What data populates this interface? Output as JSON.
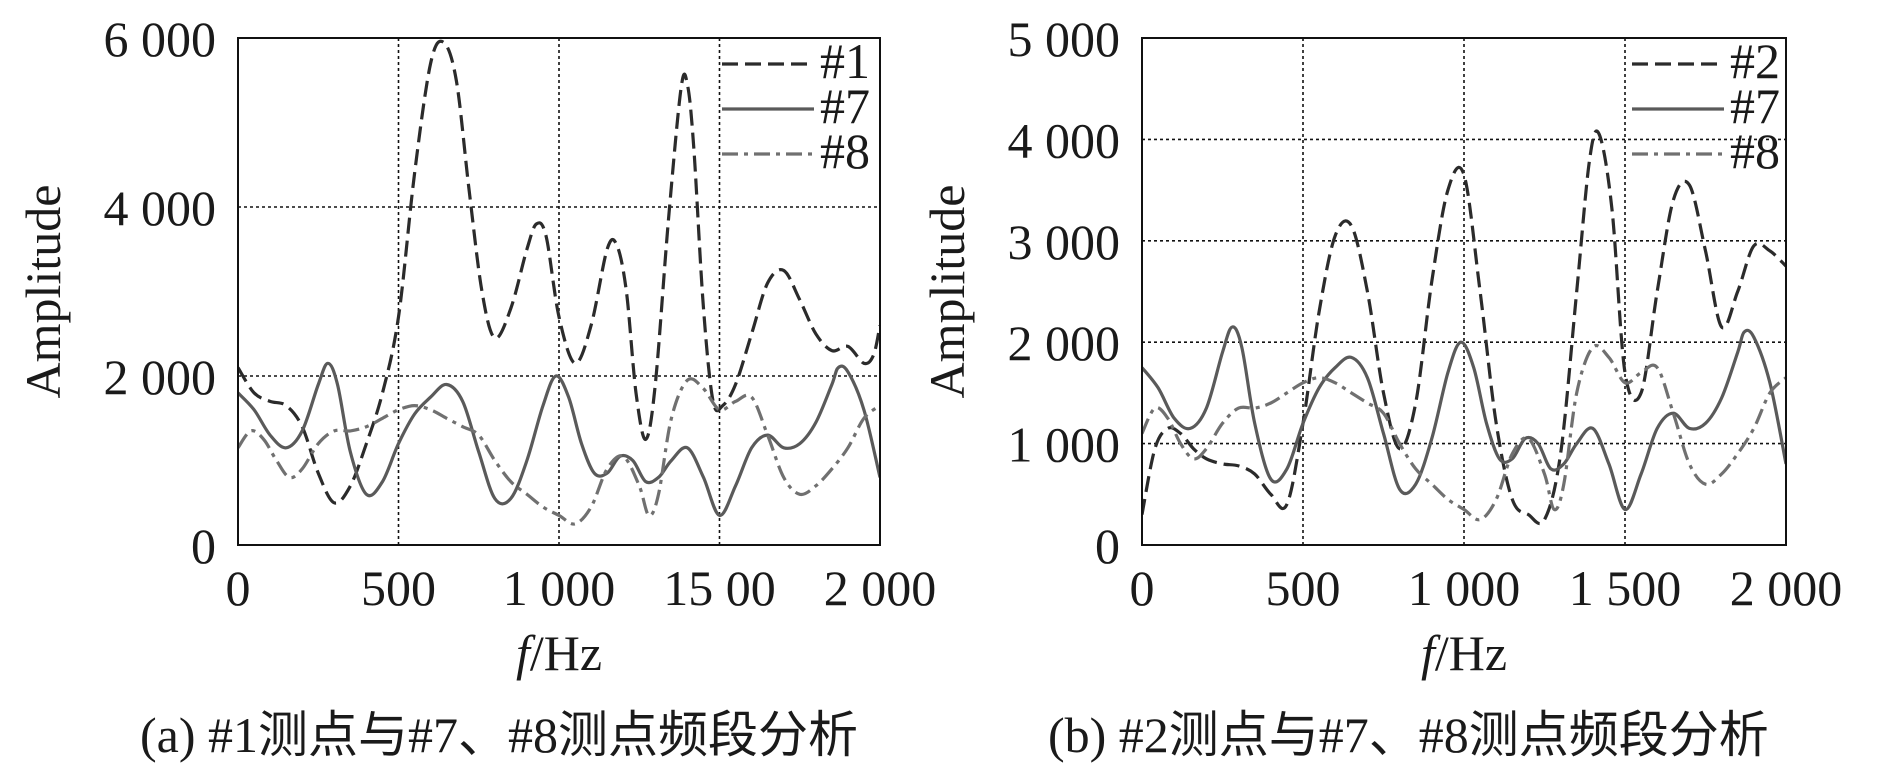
{
  "panels": [
    {
      "caption": "(a) #1测点与#7、#8测点频段分析",
      "xlabel_italic": "f",
      "xlabel_rest": "/Hz",
      "ylabel": "Amplitude"
    },
    {
      "caption": "(b) #2测点与#7、#8测点频段分析",
      "xlabel_italic": "f",
      "xlabel_rest": "/Hz",
      "ylabel": "Amplitude"
    }
  ],
  "chart_data": [
    {
      "type": "line",
      "xlabel": "f/Hz",
      "ylabel": "Amplitude",
      "xlim": [
        0,
        2000
      ],
      "ylim": [
        0,
        6000
      ],
      "xticks": [
        0,
        500,
        1000,
        1500,
        2000
      ],
      "xtick_labels": [
        "0",
        "500",
        "1 000",
        "15 00",
        "2 000"
      ],
      "yticks": [
        0,
        2000,
        4000,
        6000
      ],
      "ytick_labels": [
        "0",
        "2 000",
        "4 000",
        "6 000"
      ],
      "grid": true,
      "legend_position": "top-right",
      "series": [
        {
          "name": "#1",
          "line_style": "dashed",
          "color": "#2b2b2b",
          "x": [
            0,
            50,
            100,
            150,
            200,
            250,
            300,
            350,
            400,
            450,
            500,
            550,
            600,
            640,
            680,
            720,
            760,
            800,
            850,
            900,
            930,
            960,
            1000,
            1050,
            1100,
            1150,
            1180,
            1210,
            1240,
            1270,
            1300,
            1340,
            1380,
            1400,
            1420,
            1450,
            1480,
            1510,
            1550,
            1600,
            1650,
            1700,
            1750,
            1800,
            1850,
            1900,
            1950,
            1980,
            2000
          ],
          "y": [
            2100,
            1800,
            1700,
            1650,
            1400,
            850,
            500,
            700,
            1200,
            1800,
            2700,
            4400,
            5700,
            5950,
            5500,
            4200,
            3000,
            2450,
            2800,
            3500,
            3800,
            3650,
            2700,
            2150,
            2600,
            3500,
            3550,
            3000,
            1800,
            1250,
            1900,
            3800,
            5400,
            5450,
            4700,
            2800,
            1700,
            1650,
            1900,
            2500,
            3100,
            3250,
            2900,
            2500,
            2300,
            2350,
            2150,
            2250,
            2600
          ]
        },
        {
          "name": "#7",
          "line_style": "solid",
          "color": "#5a5a5a",
          "x": [
            0,
            50,
            100,
            150,
            200,
            250,
            280,
            310,
            350,
            400,
            450,
            500,
            550,
            600,
            650,
            700,
            750,
            800,
            850,
            900,
            950,
            990,
            1030,
            1070,
            1110,
            1150,
            1190,
            1230,
            1270,
            1310,
            1350,
            1400,
            1450,
            1500,
            1550,
            1600,
            1650,
            1700,
            1750,
            1800,
            1850,
            1870,
            1900,
            1950,
            2000
          ],
          "y": [
            1800,
            1600,
            1300,
            1150,
            1350,
            1900,
            2150,
            1900,
            1100,
            600,
            750,
            1200,
            1550,
            1750,
            1900,
            1700,
            1100,
            550,
            550,
            1000,
            1650,
            2000,
            1750,
            1200,
            850,
            850,
            1050,
            1000,
            750,
            800,
            1000,
            1150,
            800,
            350,
            700,
            1150,
            1300,
            1150,
            1200,
            1450,
            1900,
            2100,
            2050,
            1600,
            800
          ]
        },
        {
          "name": "#8",
          "line_style": "dash-dot",
          "color": "#707070",
          "x": [
            0,
            40,
            80,
            120,
            160,
            200,
            250,
            300,
            350,
            400,
            450,
            500,
            550,
            600,
            650,
            700,
            750,
            800,
            850,
            900,
            950,
            1000,
            1050,
            1100,
            1150,
            1200,
            1250,
            1280,
            1310,
            1350,
            1400,
            1450,
            1500,
            1550,
            1600,
            1650,
            1700,
            1750,
            1800,
            1850,
            1900,
            1950,
            2000
          ],
          "y": [
            1150,
            1350,
            1250,
            1000,
            800,
            900,
            1200,
            1350,
            1350,
            1400,
            1500,
            1600,
            1650,
            1600,
            1500,
            1400,
            1300,
            1000,
            750,
            600,
            450,
            350,
            250,
            450,
            900,
            1050,
            700,
            350,
            600,
            1500,
            1950,
            1850,
            1600,
            1700,
            1750,
            1300,
            800,
            600,
            700,
            900,
            1150,
            1500,
            1650
          ]
        }
      ]
    },
    {
      "type": "line",
      "xlabel": "f/Hz",
      "ylabel": "Amplitude",
      "xlim": [
        0,
        2000
      ],
      "ylim": [
        0,
        5000
      ],
      "xticks": [
        0,
        500,
        1000,
        1500,
        2000
      ],
      "xtick_labels": [
        "0",
        "500",
        "1 000",
        "1 500",
        "2 000"
      ],
      "yticks": [
        0,
        1000,
        2000,
        3000,
        4000,
        5000
      ],
      "ytick_labels": [
        "0",
        "1 000",
        "2 000",
        "3 000",
        "4 000",
        "5 000"
      ],
      "grid": true,
      "legend_position": "top-right",
      "series": [
        {
          "name": "#2",
          "line_style": "dashed",
          "color": "#2b2b2b",
          "x": [
            0,
            40,
            80,
            120,
            160,
            200,
            250,
            300,
            350,
            400,
            450,
            500,
            550,
            600,
            650,
            700,
            750,
            800,
            850,
            900,
            950,
            1000,
            1050,
            1100,
            1150,
            1200,
            1250,
            1300,
            1350,
            1390,
            1420,
            1460,
            1500,
            1550,
            1600,
            1650,
            1700,
            1750,
            1800,
            1850,
            1900,
            1950,
            2000
          ],
          "y": [
            300,
            950,
            1150,
            1100,
            950,
            850,
            800,
            780,
            700,
            500,
            400,
            1200,
            2300,
            3050,
            3150,
            2500,
            1500,
            950,
            1400,
            2600,
            3500,
            3650,
            2500,
            1200,
            450,
            300,
            250,
            900,
            2500,
            3800,
            4050,
            3300,
            1700,
            1500,
            2500,
            3400,
            3550,
            2900,
            2150,
            2500,
            2950,
            2900,
            2750
          ]
        },
        {
          "name": "#7",
          "line_style": "solid",
          "color": "#5a5a5a",
          "x": [
            0,
            50,
            100,
            150,
            200,
            250,
            280,
            310,
            350,
            400,
            450,
            500,
            550,
            600,
            650,
            700,
            750,
            800,
            850,
            900,
            950,
            990,
            1030,
            1070,
            1110,
            1150,
            1190,
            1230,
            1270,
            1310,
            1350,
            1400,
            1450,
            1500,
            1550,
            1600,
            1650,
            1700,
            1750,
            1800,
            1850,
            1870,
            1900,
            1950,
            2000
          ],
          "y": [
            1750,
            1550,
            1250,
            1150,
            1350,
            1900,
            2150,
            1950,
            1200,
            650,
            750,
            1200,
            1550,
            1750,
            1850,
            1650,
            1100,
            550,
            600,
            1050,
            1700,
            2000,
            1750,
            1200,
            850,
            850,
            1050,
            1000,
            750,
            800,
            1000,
            1150,
            800,
            350,
            700,
            1150,
            1300,
            1150,
            1200,
            1450,
            1900,
            2100,
            2050,
            1600,
            800
          ]
        },
        {
          "name": "#8",
          "line_style": "dash-dot",
          "color": "#707070",
          "x": [
            0,
            40,
            80,
            120,
            160,
            200,
            250,
            300,
            350,
            400,
            450,
            500,
            550,
            600,
            650,
            700,
            750,
            800,
            850,
            900,
            950,
            1000,
            1050,
            1100,
            1150,
            1200,
            1250,
            1280,
            1310,
            1350,
            1400,
            1450,
            1500,
            1550,
            1600,
            1650,
            1700,
            1750,
            1800,
            1850,
            1900,
            1950,
            2000
          ],
          "y": [
            1100,
            1350,
            1250,
            1000,
            850,
            950,
            1200,
            1350,
            1350,
            1400,
            1500,
            1600,
            1650,
            1600,
            1500,
            1400,
            1300,
            1000,
            750,
            600,
            450,
            350,
            250,
            450,
            900,
            1050,
            700,
            350,
            600,
            1500,
            1950,
            1850,
            1600,
            1700,
            1750,
            1300,
            800,
            600,
            700,
            900,
            1150,
            1500,
            1650
          ]
        }
      ]
    }
  ]
}
